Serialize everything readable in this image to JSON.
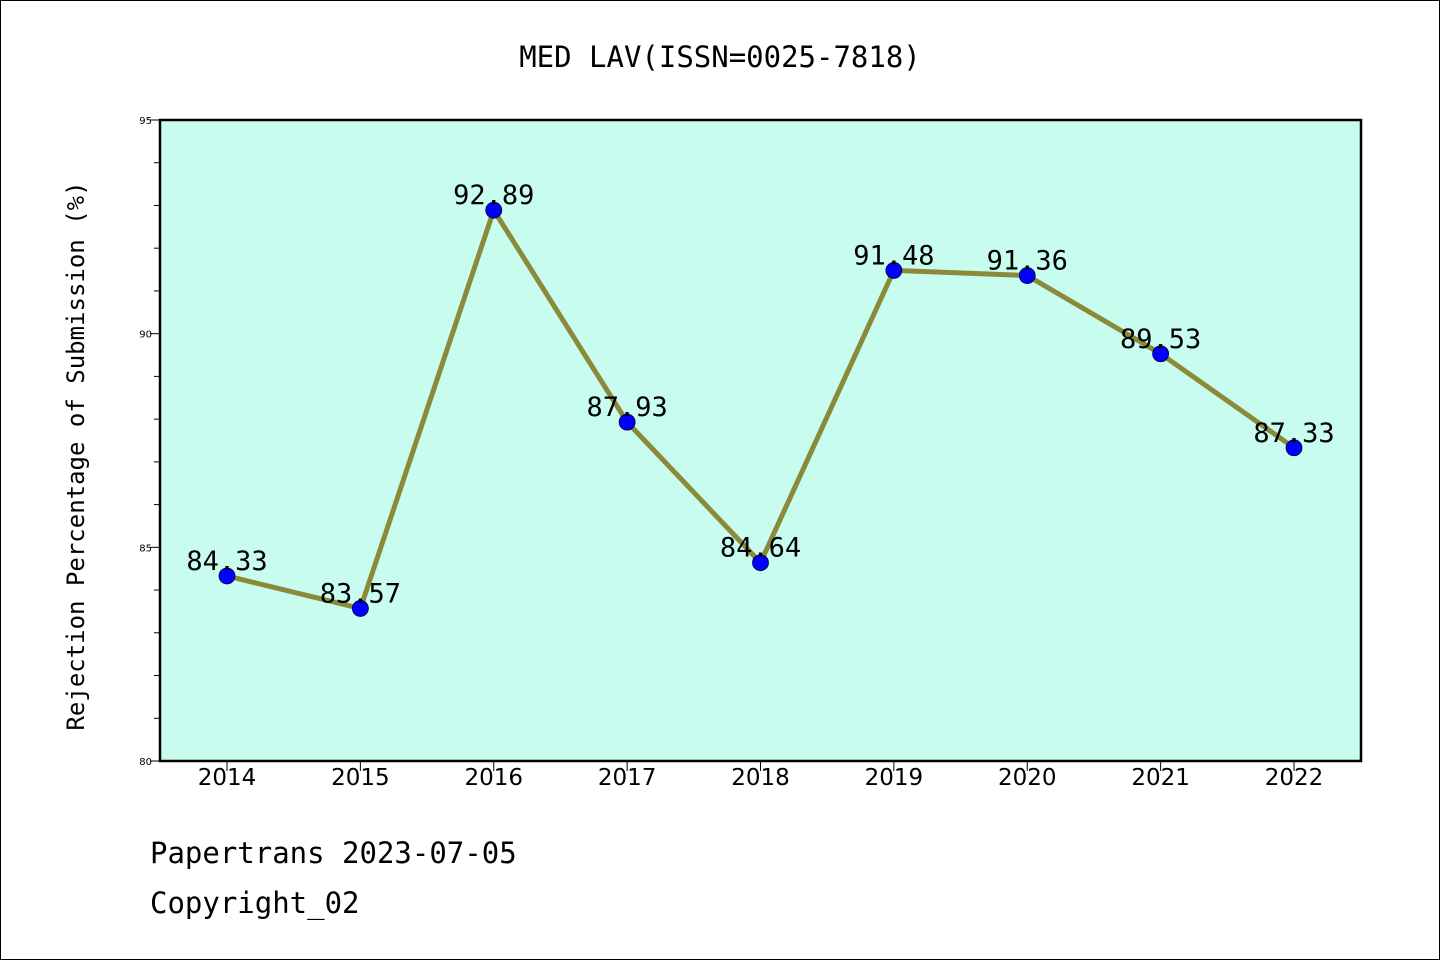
{
  "chart_data": {
    "type": "line",
    "title": "MED LAV(ISSN=0025-7818)",
    "ylabel": "Rejection Percentage of Submission (%)",
    "xlabel": "",
    "categories": [
      "2014",
      "2015",
      "2016",
      "2017",
      "2018",
      "2019",
      "2020",
      "2021",
      "2022"
    ],
    "series": [
      {
        "values": [
          84.33,
          83.57,
          92.89,
          87.93,
          84.64,
          91.48,
          91.36,
          89.53,
          87.33
        ],
        "labels": [
          "84.33",
          "83.57",
          "92.89",
          "87.93",
          "84.64",
          "91.48",
          "91.36",
          "89.53",
          "87.33"
        ]
      }
    ],
    "ylim": [
      80,
      95
    ],
    "yticks": [
      "80",
      "85",
      "90",
      "95"
    ],
    "grid": false,
    "legend": "none",
    "colors": {
      "plot_background": "#c8fcee",
      "line": "#8b8a3a",
      "marker": "#0000ff"
    }
  },
  "footer": {
    "line1": "Papertrans 2023-07-05",
    "line2": "Copyright_02"
  }
}
